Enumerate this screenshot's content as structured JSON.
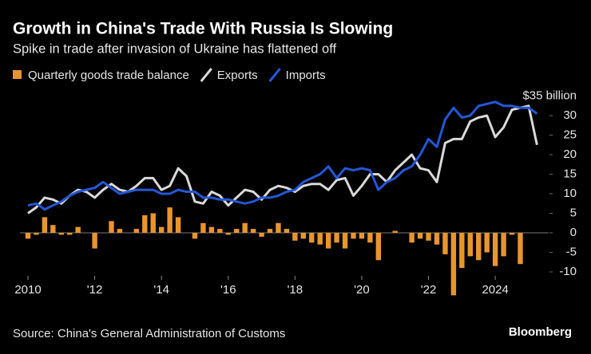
{
  "chart_data": {
    "type": "bar_line",
    "title": "Growth in China's Trade With Russia Is Slowing",
    "subtitle": "Spike in trade after invasion of Ukraine has flattened off",
    "source": "Source: China's General Administration of Customs",
    "brand": "Bloomberg",
    "x": [
      2010,
      2010.25,
      2010.5,
      2010.75,
      2011,
      2011.25,
      2011.5,
      2011.75,
      2012,
      2012.25,
      2012.5,
      2012.75,
      2013,
      2013.25,
      2013.5,
      2013.75,
      2014,
      2014.25,
      2014.5,
      2014.75,
      2015,
      2015.25,
      2015.5,
      2015.75,
      2016,
      2016.25,
      2016.5,
      2016.75,
      2017,
      2017.25,
      2017.5,
      2017.75,
      2018,
      2018.25,
      2018.5,
      2018.75,
      2019,
      2019.25,
      2019.5,
      2019.75,
      2020,
      2020.25,
      2020.5,
      2020.75,
      2021,
      2021.25,
      2021.5,
      2021.75,
      2022,
      2022.25,
      2022.5,
      2022.75,
      2023,
      2023.25,
      2023.5,
      2023.75,
      2024,
      2024.25,
      2024.5,
      2024.75,
      2025,
      2025.25
    ],
    "series": [
      {
        "name": "Quarterly goods trade balance",
        "kind": "bar",
        "color": "#e8952e",
        "values": [
          -1.5,
          -0.5,
          4,
          2,
          -0.5,
          -0.5,
          1.5,
          0,
          -4,
          0,
          3,
          1,
          0,
          1,
          4.5,
          5,
          1.5,
          6.5,
          4,
          0,
          -1.5,
          2.5,
          1.5,
          1,
          -0.5,
          1,
          2.5,
          1,
          -1,
          1,
          2.5,
          1,
          -2,
          -1.5,
          -2.5,
          -3,
          -4,
          -2.5,
          -4,
          -1.5,
          -1.5,
          -2.5,
          -7,
          0,
          0.5,
          0,
          -2.5,
          -1.5,
          -2,
          -3,
          -5.5,
          -16,
          -9,
          -6,
          -7,
          -5,
          -8.5,
          -6,
          -0.5,
          -8,
          null,
          null
        ]
      },
      {
        "name": "Exports",
        "kind": "line",
        "color": "#d9d9d9",
        "values": [
          5,
          6.5,
          9,
          8.5,
          7.5,
          9.5,
          11,
          10.5,
          9,
          11,
          12.5,
          11,
          10.5,
          12,
          14,
          14,
          11,
          12,
          16.5,
          14.5,
          8,
          7.5,
          10.5,
          9.5,
          7,
          9,
          11,
          10.5,
          8.5,
          11,
          12,
          11.5,
          10.5,
          12,
          12.5,
          12.5,
          11,
          13.5,
          14,
          9.5,
          12,
          15,
          15,
          13,
          16,
          18,
          20,
          16.5,
          16,
          13,
          23,
          24,
          24,
          28.5,
          29.5,
          30,
          24.5,
          27,
          31.5,
          32,
          32.5,
          22.5
        ]
      },
      {
        "name": "Imports",
        "kind": "line",
        "color": "#2457d6",
        "values": [
          7,
          7.5,
          6,
          7,
          8,
          9.5,
          10.5,
          11,
          11.5,
          13,
          11.5,
          10,
          10.5,
          11,
          11,
          11,
          10,
          10,
          11,
          10.5,
          10.5,
          9,
          9,
          8.5,
          8.5,
          8,
          7.5,
          8,
          9,
          9,
          9.5,
          10.5,
          11,
          13,
          14,
          15,
          17,
          14,
          16.5,
          16,
          16.5,
          16,
          11,
          13,
          14,
          16,
          17,
          20,
          24,
          22,
          29,
          32,
          29.5,
          30,
          32.5,
          33,
          33.5,
          32.5,
          32.5,
          32,
          32,
          30.5
        ]
      }
    ],
    "xlim": [
      2010,
      2025.6
    ],
    "xticks": [
      2010,
      {
        "value": 2012,
        "label": "'12"
      },
      {
        "value": 2014,
        "label": "'14"
      },
      {
        "value": 2016,
        "label": "'16"
      },
      {
        "value": 2018,
        "label": "'18"
      },
      {
        "value": 2020,
        "label": "'20"
      },
      {
        "value": 2022,
        "label": "'22"
      },
      2024
    ],
    "ylim": [
      -16,
      36
    ],
    "yticks": [
      -10,
      -5,
      0,
      5,
      10,
      15,
      20,
      25,
      30,
      {
        "value": 35,
        "label": "$35 billion"
      }
    ],
    "legend": "top-left"
  }
}
